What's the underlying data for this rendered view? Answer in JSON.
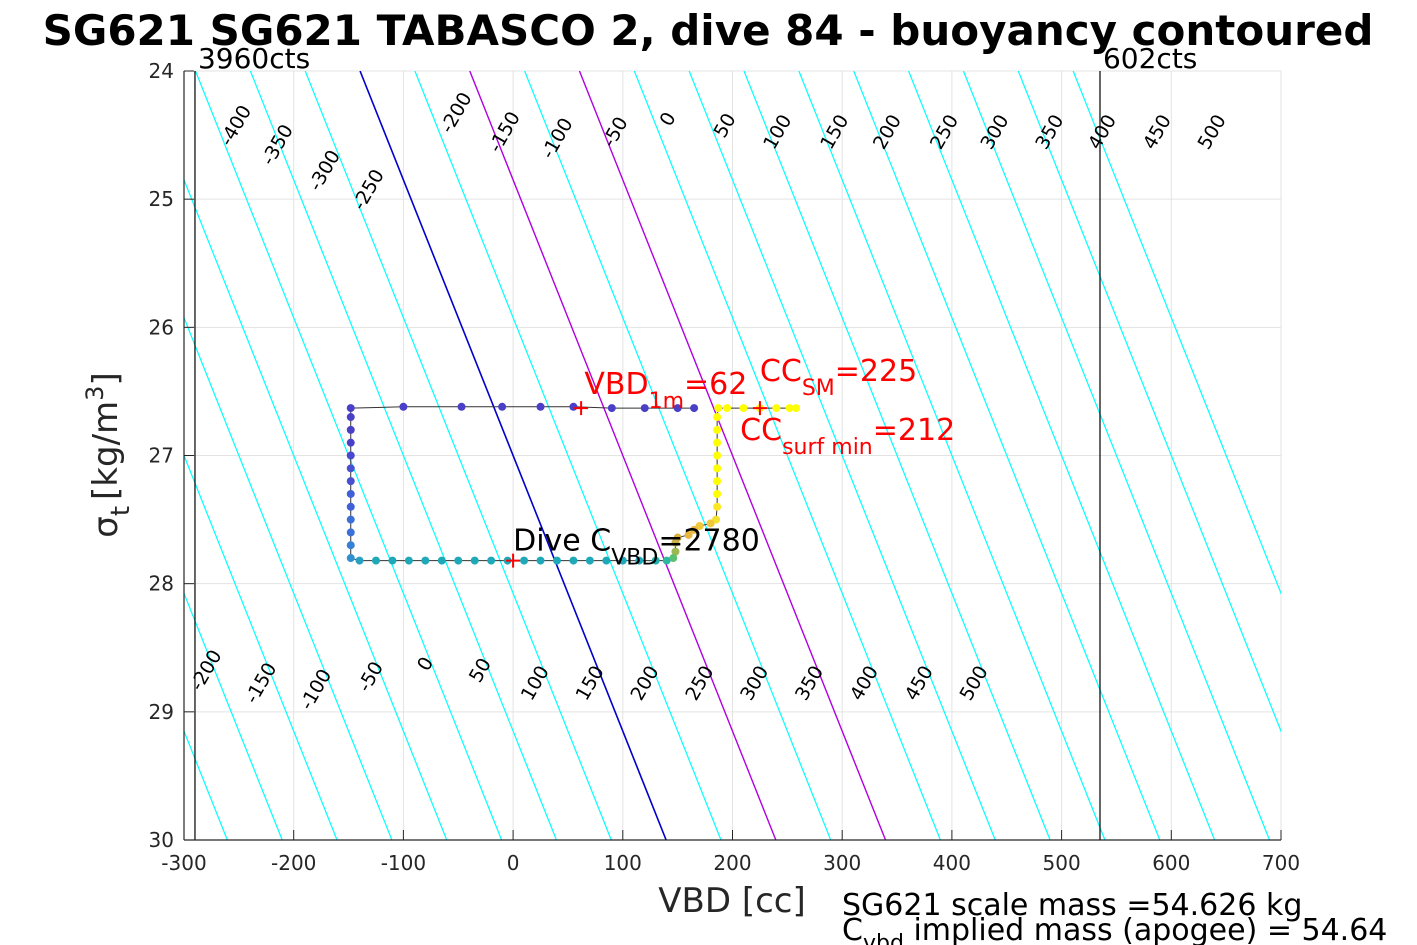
{
  "chart_data": {
    "type": "scatter",
    "title": "SG621 SG621 TABASCO 2, dive 84 - buoyancy contoured",
    "xlabel": "VBD [cc]",
    "ylabel_main": "σ",
    "ylabel_sub": "t",
    "ylabel_unit": "[kg/m",
    "ylabel_sup": "3",
    "ylabel_close": "]",
    "xlim": [
      -300,
      700
    ],
    "ylim": [
      24,
      30
    ],
    "y_reversed": true,
    "grid": true,
    "x_ticks": [
      -300,
      -200,
      -100,
      0,
      100,
      200,
      300,
      400,
      500,
      600,
      700
    ],
    "y_ticks": [
      24,
      25,
      26,
      27,
      28,
      29,
      30
    ],
    "cts_lines": [
      {
        "label": "3960cts",
        "x": -290
      },
      {
        "label": "602cts",
        "x": 535
      }
    ],
    "contours": {
      "slope_cc_per_sigma": 46.5,
      "sigma_ref": 27.0,
      "cyan_levels": [
        -400,
        -350,
        -300,
        -250,
        -200,
        -150,
        -100,
        -50,
        50,
        150,
        250,
        300,
        350,
        400,
        450,
        500
      ],
      "blue_level": 0,
      "magenta_levels": [
        100,
        200
      ],
      "top_labels": [
        "-400",
        "-350",
        "-300",
        "-250",
        "-200",
        "-150",
        "-100",
        "-50",
        "0",
        "50",
        "100",
        "150",
        "200",
        "250",
        "300",
        "350",
        "400",
        "450",
        "500"
      ],
      "top_label_x": [
        -248,
        -210,
        -167,
        -127,
        -47,
        -3,
        45,
        98,
        146,
        198,
        246,
        298,
        346,
        398,
        444,
        494,
        542,
        592,
        642
      ],
      "top_label_y": [
        24.45,
        24.6,
        24.8,
        24.95,
        24.35,
        24.5,
        24.55,
        24.5,
        24.4,
        24.45,
        24.5,
        24.5,
        24.5,
        24.5,
        24.5,
        24.5,
        24.5,
        24.5,
        24.5
      ],
      "bottom_labels": [
        "-200",
        "-150",
        "-100",
        "-50",
        "0",
        "50",
        "100",
        "150",
        "200",
        "250",
        "300",
        "350",
        "400",
        "450",
        "500"
      ],
      "bottom_label_x": [
        -275,
        -225,
        -175,
        -125,
        -75,
        -25,
        25,
        75,
        125,
        175,
        225,
        275,
        325,
        375,
        425
      ],
      "bottom_label_y": [
        28.7,
        28.8,
        28.85,
        28.75,
        28.65,
        28.7,
        28.8,
        28.8,
        28.8,
        28.8,
        28.8,
        28.8,
        28.8,
        28.8,
        28.8
      ]
    },
    "series": [
      {
        "points": [
          {
            "x": 258,
            "y": 26.63,
            "c": "#ffff00"
          },
          {
            "x": 252,
            "y": 26.63,
            "c": "#ffff00"
          },
          {
            "x": 240,
            "y": 26.63,
            "c": "#ffff00"
          },
          {
            "x": 225,
            "y": 26.63,
            "c": "#ffff00"
          },
          {
            "x": 210,
            "y": 26.63,
            "c": "#ffff00"
          },
          {
            "x": 195,
            "y": 26.63,
            "c": "#ffff00"
          },
          {
            "x": 187,
            "y": 26.63,
            "c": "#ffff00"
          },
          {
            "x": 186,
            "y": 26.7,
            "c": "#ffff00"
          },
          {
            "x": 186,
            "y": 26.8,
            "c": "#ffff00"
          },
          {
            "x": 186,
            "y": 26.9,
            "c": "#ffff00"
          },
          {
            "x": 186,
            "y": 27.0,
            "c": "#ffff00"
          },
          {
            "x": 186,
            "y": 27.1,
            "c": "#ffff00"
          },
          {
            "x": 186,
            "y": 27.2,
            "c": "#ffff00"
          },
          {
            "x": 186,
            "y": 27.3,
            "c": "#ffff00"
          },
          {
            "x": 186,
            "y": 27.4,
            "c": "#fde725"
          },
          {
            "x": 185,
            "y": 27.5,
            "c": "#f4e22e"
          },
          {
            "x": 180,
            "y": 27.53,
            "c": "#f0c83a"
          },
          {
            "x": 170,
            "y": 27.55,
            "c": "#f0c83a"
          },
          {
            "x": 165,
            "y": 27.58,
            "c": "#e8b83e"
          },
          {
            "x": 160,
            "y": 27.62,
            "c": "#e8b83e"
          },
          {
            "x": 150,
            "y": 27.64,
            "c": "#d8b040"
          },
          {
            "x": 148,
            "y": 27.68,
            "c": "#c8b048"
          },
          {
            "x": 148,
            "y": 27.75,
            "c": "#9cb850"
          },
          {
            "x": 146,
            "y": 27.8,
            "c": "#5cc070"
          },
          {
            "x": 140,
            "y": 27.82,
            "c": "#2eb8a0"
          },
          {
            "x": 130,
            "y": 27.82,
            "c": "#1fb0b0"
          },
          {
            "x": 115,
            "y": 27.82,
            "c": "#1ea8b8"
          },
          {
            "x": 100,
            "y": 27.82,
            "c": "#1ea8b8"
          },
          {
            "x": 85,
            "y": 27.82,
            "c": "#1ea8b8"
          },
          {
            "x": 70,
            "y": 27.82,
            "c": "#1ea8b8"
          },
          {
            "x": 55,
            "y": 27.82,
            "c": "#1ea8b8"
          },
          {
            "x": 40,
            "y": 27.82,
            "c": "#1ea8b8"
          },
          {
            "x": 25,
            "y": 27.82,
            "c": "#1ea8b8"
          },
          {
            "x": 10,
            "y": 27.82,
            "c": "#1ea8b8"
          },
          {
            "x": -5,
            "y": 27.82,
            "c": "#1ea8b8"
          },
          {
            "x": -20,
            "y": 27.82,
            "c": "#1ea8b8"
          },
          {
            "x": -35,
            "y": 27.82,
            "c": "#1ea8b8"
          },
          {
            "x": -50,
            "y": 27.82,
            "c": "#1ea8b8"
          },
          {
            "x": -65,
            "y": 27.82,
            "c": "#1ea8b8"
          },
          {
            "x": -80,
            "y": 27.82,
            "c": "#1ea8b8"
          },
          {
            "x": -95,
            "y": 27.82,
            "c": "#1ea8b8"
          },
          {
            "x": -110,
            "y": 27.82,
            "c": "#1ea8b8"
          },
          {
            "x": -125,
            "y": 27.82,
            "c": "#1ea8b8"
          },
          {
            "x": -140,
            "y": 27.82,
            "c": "#2aa0c0"
          },
          {
            "x": -148,
            "y": 27.8,
            "c": "#3090d0"
          },
          {
            "x": -148,
            "y": 27.7,
            "c": "#3580d8"
          },
          {
            "x": -148,
            "y": 27.6,
            "c": "#3a70d8"
          },
          {
            "x": -148,
            "y": 27.5,
            "c": "#3a70d8"
          },
          {
            "x": -148,
            "y": 27.4,
            "c": "#4060d8"
          },
          {
            "x": -148,
            "y": 27.3,
            "c": "#4060d8"
          },
          {
            "x": -148,
            "y": 27.2,
            "c": "#4850d0"
          },
          {
            "x": -148,
            "y": 27.1,
            "c": "#4850d0"
          },
          {
            "x": -148,
            "y": 27.0,
            "c": "#4848d0"
          },
          {
            "x": -148,
            "y": 26.9,
            "c": "#4a40c8"
          },
          {
            "x": -148,
            "y": 26.8,
            "c": "#4a40c8"
          },
          {
            "x": -148,
            "y": 26.7,
            "c": "#4a40c8"
          },
          {
            "x": -148,
            "y": 26.63,
            "c": "#4a40c8"
          },
          {
            "x": -100,
            "y": 26.62,
            "c": "#4a40c8"
          },
          {
            "x": -47,
            "y": 26.62,
            "c": "#4a40c8"
          },
          {
            "x": -10,
            "y": 26.62,
            "c": "#4a40c8"
          },
          {
            "x": 25,
            "y": 26.62,
            "c": "#4a40c8"
          },
          {
            "x": 55,
            "y": 26.62,
            "c": "#4a40c8"
          },
          {
            "x": 90,
            "y": 26.63,
            "c": "#4a40c8"
          },
          {
            "x": 120,
            "y": 26.63,
            "c": "#4a40c8"
          },
          {
            "x": 150,
            "y": 26.63,
            "c": "#4a40c8"
          },
          {
            "x": 165,
            "y": 26.63,
            "c": "#4a40c8"
          }
        ]
      }
    ],
    "markers": [
      {
        "x": 62,
        "y": 26.63,
        "color": "#ff0000"
      },
      {
        "x": 225,
        "y": 26.63,
        "color": "#ff0000"
      },
      {
        "x": 0,
        "y": 27.82,
        "color": "#ff0000"
      }
    ],
    "annotations": {
      "vbd_1m": {
        "main": "VBD",
        "sub": "1m",
        "tail": "=62",
        "x": 65,
        "y": 26.52
      },
      "cc_sm": {
        "main": "CC",
        "sub": "SM",
        "tail": "=225",
        "x": 225,
        "y": 26.42
      },
      "cc_surf": {
        "main": "CC",
        "sub": "surf min",
        "tail": "=212",
        "x": 207,
        "y": 26.88
      },
      "dive_c": {
        "main": "Dive C",
        "sub": "VBD",
        "tail": "=2780",
        "x": 0,
        "y": 27.74
      }
    },
    "footer": {
      "line1": "SG621 scale mass =54.626 kg",
      "line2_main": "C",
      "line2_sub": "vbd",
      "line2_tail": " implied mass (apogee) = 54.64"
    }
  }
}
